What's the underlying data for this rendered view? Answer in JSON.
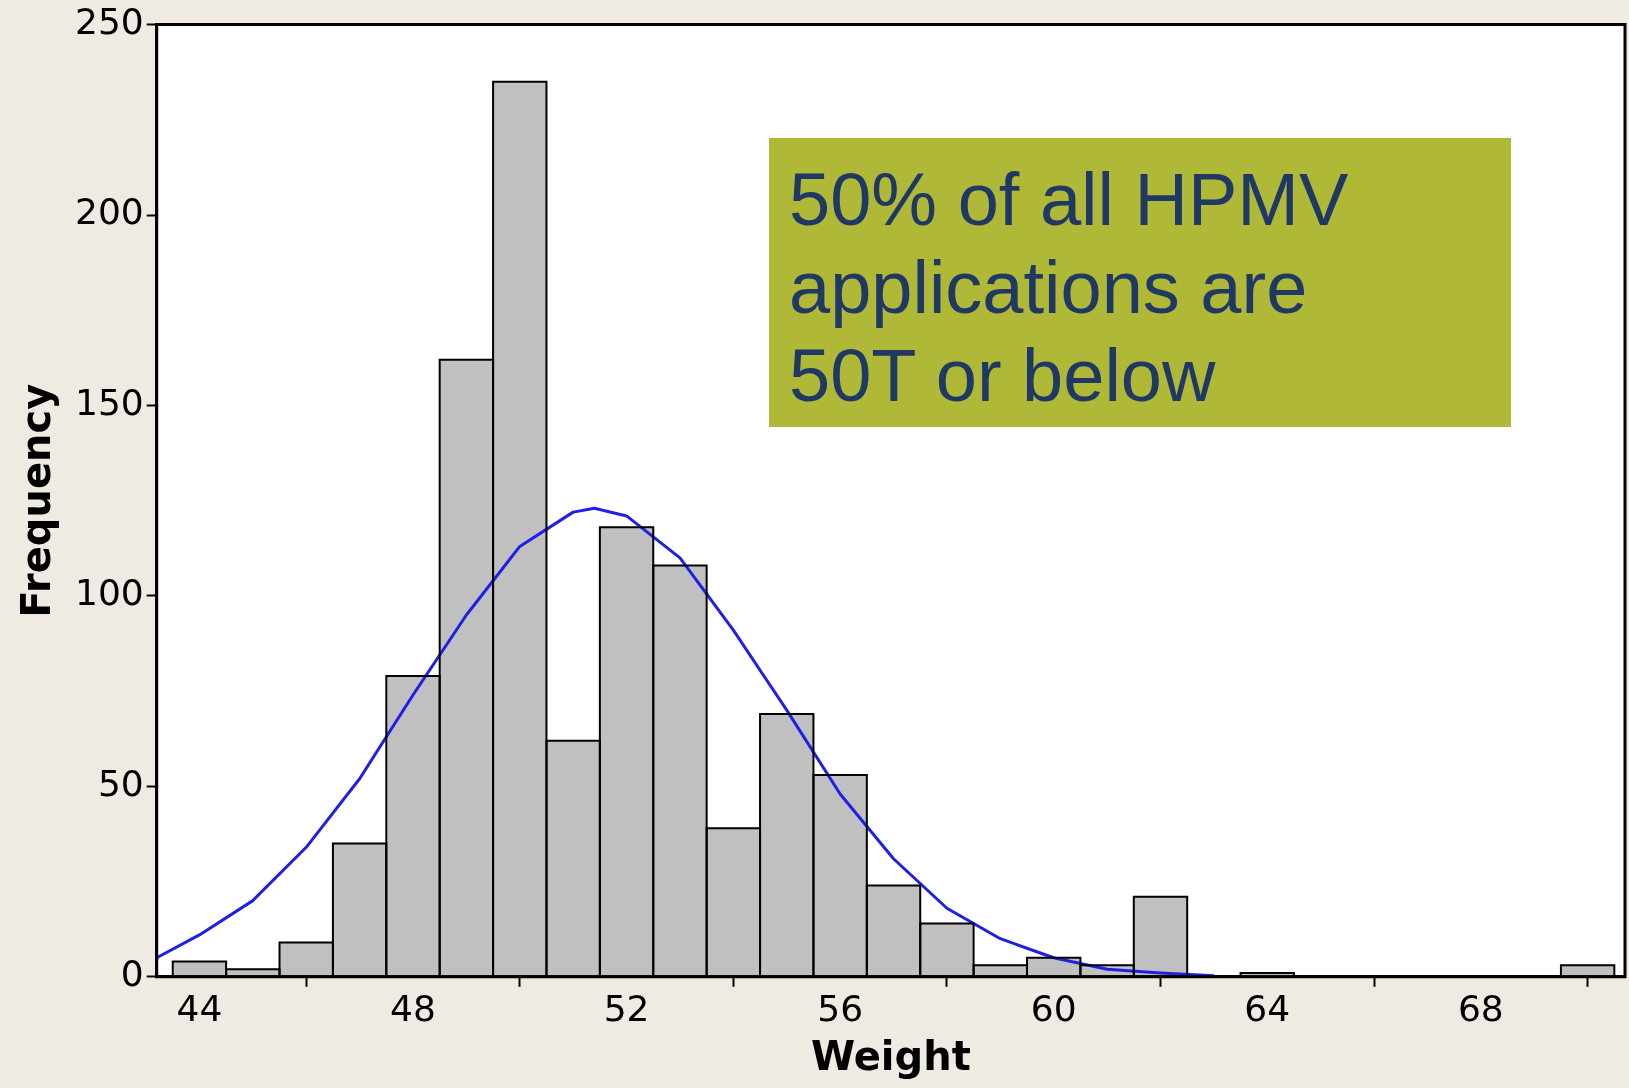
{
  "chart_data": {
    "type": "histogram",
    "xlabel": "Weight",
    "ylabel": "Frequency",
    "bins": [
      43.5,
      44.5,
      45.5,
      46.5,
      47.5,
      48.5,
      49.5,
      50.5,
      51.5,
      52.5,
      53.5,
      54.5,
      55.5,
      56.5,
      57.5,
      58.5,
      59.5,
      60.5,
      61.5,
      62.5,
      63.5,
      64.5,
      65.5,
      66.5,
      67.5,
      68.5,
      69.5,
      70.5
    ],
    "values": [
      4,
      2,
      9,
      35,
      79,
      162,
      235,
      62,
      118,
      108,
      39,
      69,
      53,
      24,
      14,
      3,
      5,
      3,
      21,
      0,
      1,
      0,
      0,
      0,
      0,
      0,
      3
    ],
    "color": "#c0c0c0",
    "series": [
      {
        "type": "line",
        "color": "#1f1fe6",
        "x": [
          43.2,
          44,
          45,
          46,
          47,
          48,
          49,
          50,
          51,
          51.4,
          52,
          53,
          54,
          55,
          56,
          57,
          58,
          59,
          60,
          61,
          62,
          63
        ],
        "values": [
          5,
          11,
          20,
          34,
          52,
          74,
          95,
          113,
          122,
          123,
          121,
          110,
          91,
          70,
          48,
          31,
          18,
          10,
          5,
          2,
          1,
          0.3
        ]
      }
    ],
    "xlim": [
      43.2,
      70.7
    ],
    "xticks": [
      44,
      48,
      52,
      56,
      60,
      64,
      68
    ],
    "ylim": [
      0,
      250
    ],
    "yticks": [
      0,
      50,
      100,
      150,
      200,
      250
    ],
    "grid": false,
    "legend": false,
    "marker": "none",
    "annotations": [
      "50% of all HPMV applications are 50T or below"
    ]
  }
}
